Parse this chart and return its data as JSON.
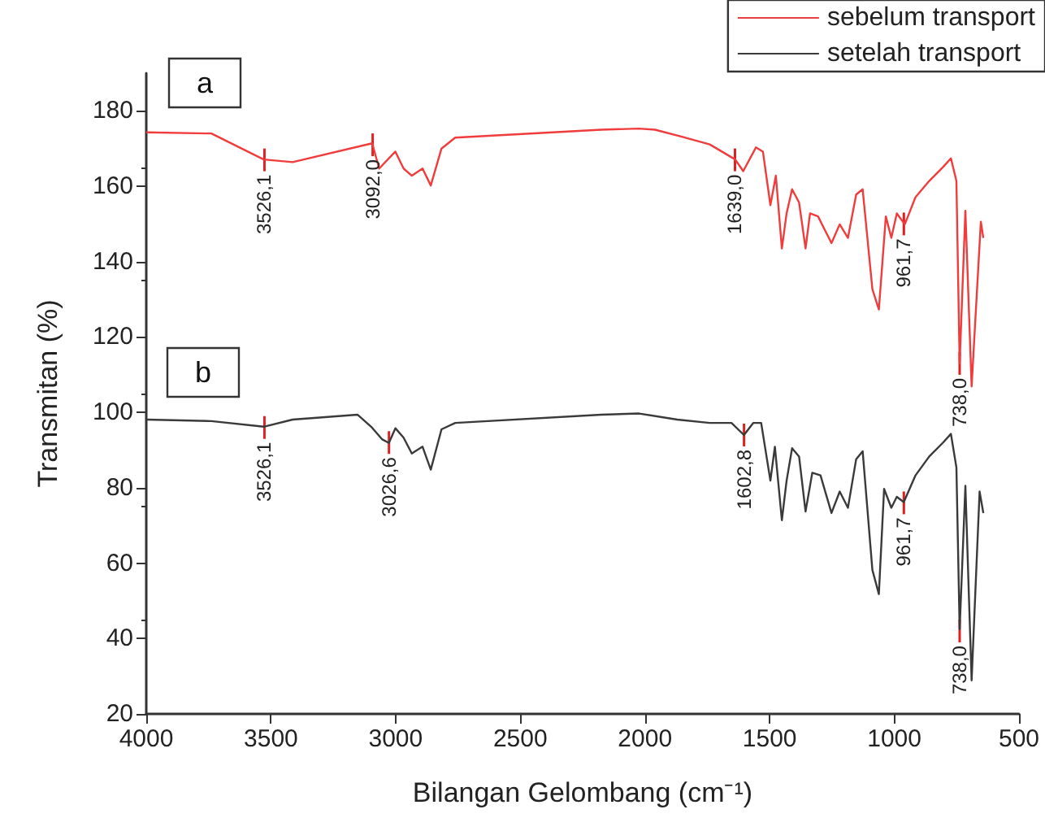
{
  "chart_data": {
    "type": "line",
    "xlabel": "Bilangan Gelombang (cm⁻¹)",
    "ylabel": "Transmitan (%)",
    "xlim": [
      4000,
      500
    ],
    "xticks": [
      4000,
      3500,
      3000,
      2500,
      2000,
      1500,
      1000,
      500
    ],
    "ylim": [
      20,
      190
    ],
    "yticks": [
      20,
      40,
      60,
      80,
      100,
      120,
      140,
      160,
      180
    ],
    "grid": false,
    "legend": "top right",
    "marker": "none",
    "line_style": "solid",
    "series": [
      {
        "name": "sebelum transport",
        "color": "#f03c3c",
        "x": [
          4000,
          3739,
          3529,
          3413,
          3094,
          3066,
          3001,
          2968,
          2935,
          2892,
          2859,
          2816,
          2761,
          2175,
          2025,
          1960,
          1849,
          1740,
          1638,
          1606,
          1555,
          1527,
          1497,
          1475,
          1451,
          1432,
          1410,
          1382,
          1356,
          1338,
          1306,
          1252,
          1219,
          1186,
          1153,
          1127,
          1088,
          1062,
          1034,
          1012,
          990,
          958,
          915,
          860,
          806,
          773,
          751,
          738,
          715,
          690,
          653,
          643
        ],
        "values": [
          174.3,
          174,
          167.1,
          166.4,
          171.4,
          164.7,
          169.2,
          164.7,
          162.8,
          164.7,
          160.2,
          170,
          172.9,
          175,
          175.3,
          175,
          173.1,
          171.1,
          167.1,
          164,
          170.3,
          169.2,
          155,
          162.8,
          143.5,
          152.8,
          159.2,
          155.7,
          143.5,
          152.8,
          152,
          144.9,
          149.9,
          146.3,
          157.8,
          159.2,
          132.7,
          127.3,
          152,
          146.3,
          152.8,
          149.9,
          157.1,
          161.4,
          165,
          167.4,
          161.4,
          113,
          153.5,
          106.9,
          150.6,
          146.3
        ]
      },
      {
        "name": "setelah transport",
        "color": "#3a3a3a",
        "x": [
          4000,
          3739,
          3529,
          3413,
          3153,
          3098,
          3055,
          3027,
          3001,
          2968,
          2935,
          2892,
          2859,
          2816,
          2761,
          2175,
          2023,
          1871,
          1740,
          1653,
          1603,
          1566,
          1534,
          1497,
          1479,
          1451,
          1432,
          1410,
          1382,
          1356,
          1329,
          1296,
          1252,
          1219,
          1186,
          1153,
          1127,
          1088,
          1062,
          1041,
          1012,
          990,
          962,
          915,
          860,
          806,
          773,
          751,
          738,
          715,
          690,
          658,
          643
        ],
        "values": [
          98.1,
          97.7,
          96.2,
          98.1,
          99.4,
          96.2,
          92.9,
          91.9,
          95.8,
          93.3,
          89.1,
          90.9,
          84.8,
          95.5,
          97.2,
          99.4,
          99.7,
          98.1,
          97.2,
          97.2,
          94,
          97.2,
          97.2,
          81.9,
          90.9,
          71.4,
          81.9,
          90.5,
          88.3,
          73.7,
          84,
          83.3,
          73.3,
          79,
          74.7,
          87.6,
          89.7,
          58.2,
          51.8,
          79.7,
          74.7,
          77.6,
          76.2,
          83.3,
          88.3,
          91.9,
          94.3,
          85.4,
          42.5,
          80.5,
          28.9,
          79,
          73.3
        ]
      }
    ],
    "annotations": [
      "a",
      "b",
      {
        "text": "3526,1",
        "x": 3526.1,
        "y": 167
      },
      {
        "text": "3092,0",
        "x": 3092.0,
        "y": 171
      },
      {
        "text": "1639,0",
        "x": 1639.0,
        "y": 167
      },
      {
        "text": "961,7",
        "x": 961.7,
        "y": 150
      },
      {
        "text": "738,0",
        "x": 738.0,
        "y": 113
      },
      {
        "text": "3526,1",
        "x": 3526.1,
        "y": 96
      },
      {
        "text": "3026,6",
        "x": 3026.6,
        "y": 92
      },
      {
        "text": "1602,8",
        "x": 1602.8,
        "y": 94
      },
      {
        "text": "961,7",
        "x": 961.7,
        "y": 76
      },
      {
        "text": "738,0",
        "x": 738.0,
        "y": 42
      }
    ]
  }
}
